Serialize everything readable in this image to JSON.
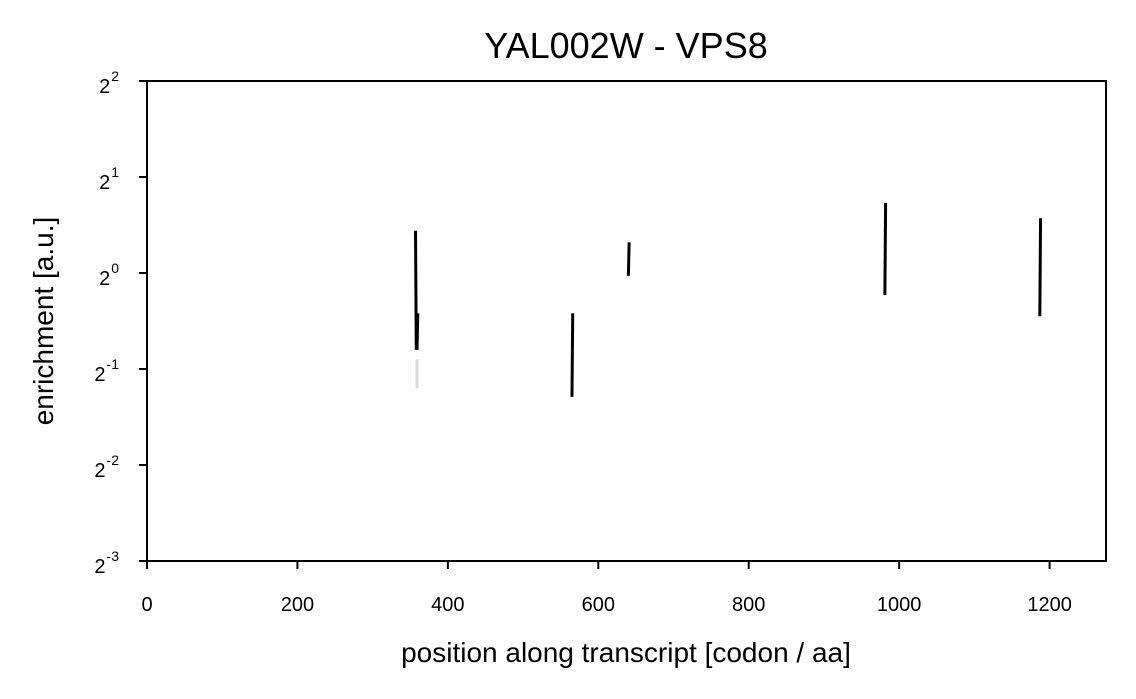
{
  "chart_data": {
    "type": "scatter",
    "title": "YAL002W - VPS8",
    "xlabel": "position along transcript [codon / aa]",
    "ylabel": "enrichment [a.u.]",
    "xlim": [
      0,
      1275
    ],
    "ylim_log2": [
      -3,
      2
    ],
    "x_ticks": [
      0,
      200,
      400,
      600,
      800,
      1000,
      1200
    ],
    "x_tick_labels": [
      "0",
      "200",
      "400",
      "600",
      "800",
      "1000",
      "1200"
    ],
    "y_ticks_log2": [
      -3,
      -2,
      -1,
      0,
      1,
      2
    ],
    "y_tick_base": "2",
    "y_tick_exponents": [
      "-3",
      "-2",
      "-1",
      "0",
      "1",
      "2"
    ],
    "grid": false,
    "legend": "none",
    "series": [
      {
        "name": "enrichment",
        "color": "#000000",
        "segments": [
          {
            "x_start": 357,
            "x_end": 358,
            "y_start_log2": 0.44,
            "y_end_log2": -0.8,
            "opacity": 1.0
          },
          {
            "x_start": 360,
            "x_end": 359,
            "y_start_log2": -0.42,
            "y_end_log2": -0.8,
            "opacity": 1.0
          },
          {
            "x_start": 359,
            "x_end": 359,
            "y_start_log2": -0.9,
            "y_end_log2": -1.2,
            "opacity": 0.15
          },
          {
            "x_start": 566,
            "x_end": 565,
            "y_start_log2": -0.42,
            "y_end_log2": -1.29,
            "opacity": 1.0
          },
          {
            "x_start": 641,
            "x_end": 640,
            "y_start_log2": 0.32,
            "y_end_log2": -0.03,
            "opacity": 1.0
          },
          {
            "x_start": 982,
            "x_end": 981,
            "y_start_log2": 0.73,
            "y_end_log2": -0.23,
            "opacity": 1.0
          },
          {
            "x_start": 1188,
            "x_end": 1187,
            "y_start_log2": 0.57,
            "y_end_log2": -0.45,
            "opacity": 1.0
          }
        ]
      }
    ]
  }
}
